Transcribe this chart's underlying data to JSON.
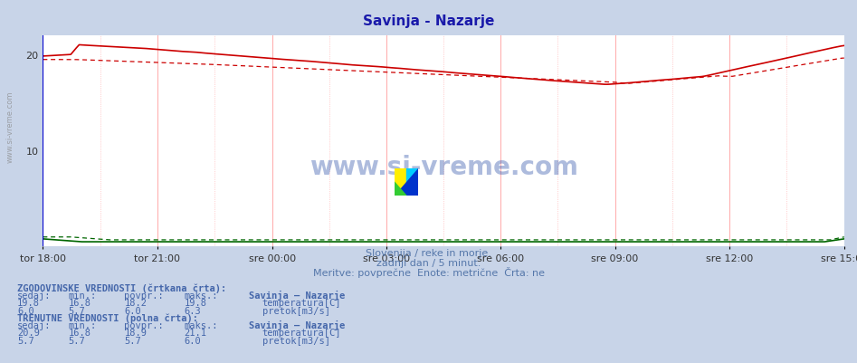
{
  "title": "Savinja - Nazarje",
  "title_color": "#1a1aaa",
  "bg_color": "#c8d4e8",
  "plot_bg_color": "#ffffff",
  "grid_color_white": "#ffffff",
  "grid_color_pink": "#ffaaaa",
  "x_tick_labels": [
    "tor 18:00",
    "tor 21:00",
    "sre 00:00",
    "sre 03:00",
    "sre 06:00",
    "sre 09:00",
    "sre 12:00",
    "sre 15:00"
  ],
  "x_tick_positions_norm": [
    0.0,
    0.143,
    0.286,
    0.429,
    0.571,
    0.714,
    0.857,
    1.0
  ],
  "y_ticks": [
    10,
    20
  ],
  "ylim": [
    0,
    22
  ],
  "temp_color": "#cc0000",
  "flow_color": "#006600",
  "left_border_color": "#0000cc",
  "subtitle1": "Slovenija / reke in morje.",
  "subtitle2": "zadnji dan / 5 minut.",
  "subtitle3": "Meritve: povprečne  Enote: metrične  Črta: ne",
  "subtitle_color": "#5577aa",
  "table_text_color": "#4466aa",
  "label1": "ZGODOVINSKE VREDNOSTI (črtkana črta):",
  "label2": "TRENUTNE VREDNOSTI (polna črta):",
  "col_headers": [
    "sedaj:",
    "min.:",
    "povpr.:",
    "maks.:"
  ],
  "hist_temp": [
    19.8,
    16.8,
    18.2,
    19.8
  ],
  "hist_flow": [
    6.0,
    5.7,
    6.0,
    6.3
  ],
  "curr_temp": [
    20.9,
    16.8,
    18.9,
    21.1
  ],
  "curr_flow": [
    5.7,
    5.7,
    5.7,
    6.0
  ],
  "station_label": "Savinja – Nazarje",
  "label_temp": "temperatura[C]",
  "label_flow": "pretok[m3/s]",
  "watermark": "www.si-vreme.com",
  "watermark_color": "#3355aa",
  "n_points": 288
}
